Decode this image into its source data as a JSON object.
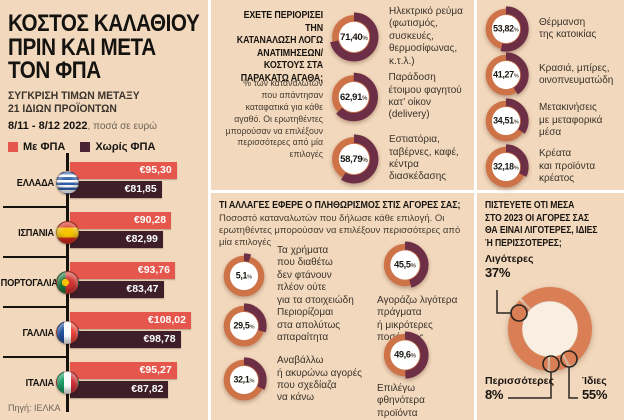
{
  "misc": {
    "percent_sign": "%"
  },
  "colors": {
    "background": "#F2D8BC",
    "bar_with_vat": "#E5564C",
    "bar_without_vat": "#3E1E29",
    "donut_ring": "#CE7347",
    "donut_arc": "#6D2F46",
    "big_donut": "#D97E55"
  },
  "header": {
    "title": "ΚΟΣΤΟΣ ΚΑΛΑΘΙΟΥ\nΠΡΙΝ ΚΑΙ ΜΕΤΑ\nΤΟΝ ΦΠΑ",
    "subtitle": "ΣΥΓΚΡΙΣΗ ΤΙΜΩΝ ΜΕΤΑΞΥ\n21 ΙΔΙΩΝ ΠΡΟΪΟΝΤΩΝ",
    "period": "8/11 - 8/12 2022",
    "period_note": ", ποσά σε ευρώ",
    "source": "Πηγή: ΙΕΛΚΑ"
  },
  "legend": {
    "with_vat": "Με ΦΠΑ",
    "without_vat": "Χωρίς ΦΠΑ"
  },
  "chart_data": [
    {
      "type": "bar",
      "title": "ΚΟΣΤΟΣ ΚΑΛΑΘΙΟΥ ΠΡΙΝ ΚΑΙ ΜΕΤΑ ΤΟΝ ΦΠΑ",
      "unit": "ευρώ",
      "categories": [
        "ΕΛΛΑΔΑ",
        "ΙΣΠΑΝΙΑ",
        "ΠΟΡΤΟΓΑΛΙΑ",
        "ΓΑΛΛΙΑ",
        "ΙΤΑΛΙΑ"
      ],
      "series": [
        {
          "name": "Με ΦΠΑ",
          "color": "#E5564C",
          "values": [
            95.3,
            90.28,
            93.76,
            108.02,
            95.27
          ],
          "labels": [
            "€95,30",
            "€90,28",
            "€93,76",
            "€108,02",
            "€95,27"
          ]
        },
        {
          "name": "Χωρίς ΦΠΑ",
          "color": "#3E1E29",
          "values": [
            81.85,
            82.99,
            83.47,
            98.78,
            87.82
          ],
          "labels": [
            "€81,85",
            "€82,99",
            "€83,47",
            "€98,78",
            "€87,82"
          ]
        }
      ]
    },
    {
      "type": "donut-list",
      "question": "ΕΧΕΤΕ ΠΕΡΙΟΡΙΣΕΙ ΤΗΝ\nΚΑΤΑΝΑΛΩΣΗ ΛΟΓΩ\nΑΝΑΤΙΜΗΣΕΩΝ/\nΚΟΣΤΟΥΣ ΣΤΑ\nΠΑΡΑΚΑΤΩ ΑΓΑΘΑ;",
      "note": "% των καταναλωτών\nπου απάντησαν\nκαταφατικά για κάθε\nαγαθό. Οι ερωτηθέντες\nμπορούσαν να επιλέξουν\nπερισσότερες από μία\nεπιλογές",
      "items": [
        {
          "label": "Ηλεκτρικό ρεύμα\n(φωτισμός,\nσυσκευές,\nθερμοσίφωνας,\nκ.τ.λ.)",
          "value": 71.4,
          "display": "71,40"
        },
        {
          "label": "Παράδοση\nέτοιμου φαγητού\nκατ’ οίκον (delivery)",
          "value": 62.91,
          "display": "62,91"
        },
        {
          "label": "Εστιατόρια,\nταβέρνες, καφέ,\nκέντρα\nδιασκέδασης",
          "value": 58.79,
          "display": "58,79"
        },
        {
          "label": "Θέρμανση\nτης κατοικίας",
          "value": 53.82,
          "display": "53,82"
        },
        {
          "label": "Κρασιά, μπίρες,\nοινοπνευματώδη",
          "value": 41.27,
          "display": "41,27"
        },
        {
          "label": "Μετακινήσεις\nμε μεταφορικά\nμέσα",
          "value": 34.51,
          "display": "34,51"
        },
        {
          "label": "Κρέατα\nκαι προϊόντα\nκρέατος",
          "value": 32.18,
          "display": "32,18"
        }
      ]
    },
    {
      "type": "donut-list",
      "question": "ΤΙ ΑΛΛΑΓΕΣ ΕΦΕΡΕ Ο ΠΛΗΘΩΡΙΣΜΟΣ ΣΤΙΣ ΑΓΟΡΕΣ ΣΑΣ;",
      "note": "Ποσοστό καταναλωτών που δήλωσε κάθε επιλογή. Οι ερωτηθέντες μπορούσαν να επιλέξουν περισσότερες από μία επιλογές",
      "items": [
        {
          "label": "Τα χρήματα\nπου διαθέτω\nδεν φτάνουν\nπλέον ούτε\nγια τα στοιχειώδη",
          "value": 5.1,
          "display": "5,1"
        },
        {
          "label": "Περιορίζομαι\nστα απολύτως\nαπαραίτητα",
          "value": 29.5,
          "display": "29,5"
        },
        {
          "label": "Αναβάλλω\nή ακυρώνω αγορές\nπου σχεδίαζα\nνα κάνω",
          "value": 32.1,
          "display": "32,1"
        },
        {
          "label": "Αγοράζω λιγότερα\nπράγματα\nή μικρότερες\nποσότητες",
          "value": 45.5,
          "display": "45,5"
        },
        {
          "label": "Επιλέγω\nφθηνότερα\nπροϊόντα",
          "value": 49.6,
          "display": "49,6"
        }
      ]
    },
    {
      "type": "pie",
      "question": "ΠΙΣΤΕΥΕΤΕ ΟΤΙ ΜΕΣΑ\nΣΤΟ 2023 ΟΙ ΑΓΟΡΕΣ ΣΑΣ\nΘΑ ΕΙΝΑΙ ΛΙΓΟΤΕΡΕΣ, ΙΔΙΕΣ\nΉ ΠΕΡΙΣΣΟΤΕΡΕΣ;",
      "segments": [
        {
          "label": "Ίδιες",
          "value": 55,
          "display": "55%"
        },
        {
          "label": "Περισσότερες",
          "value": 8,
          "display": "8%"
        },
        {
          "label": "Λιγότερες",
          "value": 37,
          "display": "37%"
        }
      ]
    }
  ]
}
